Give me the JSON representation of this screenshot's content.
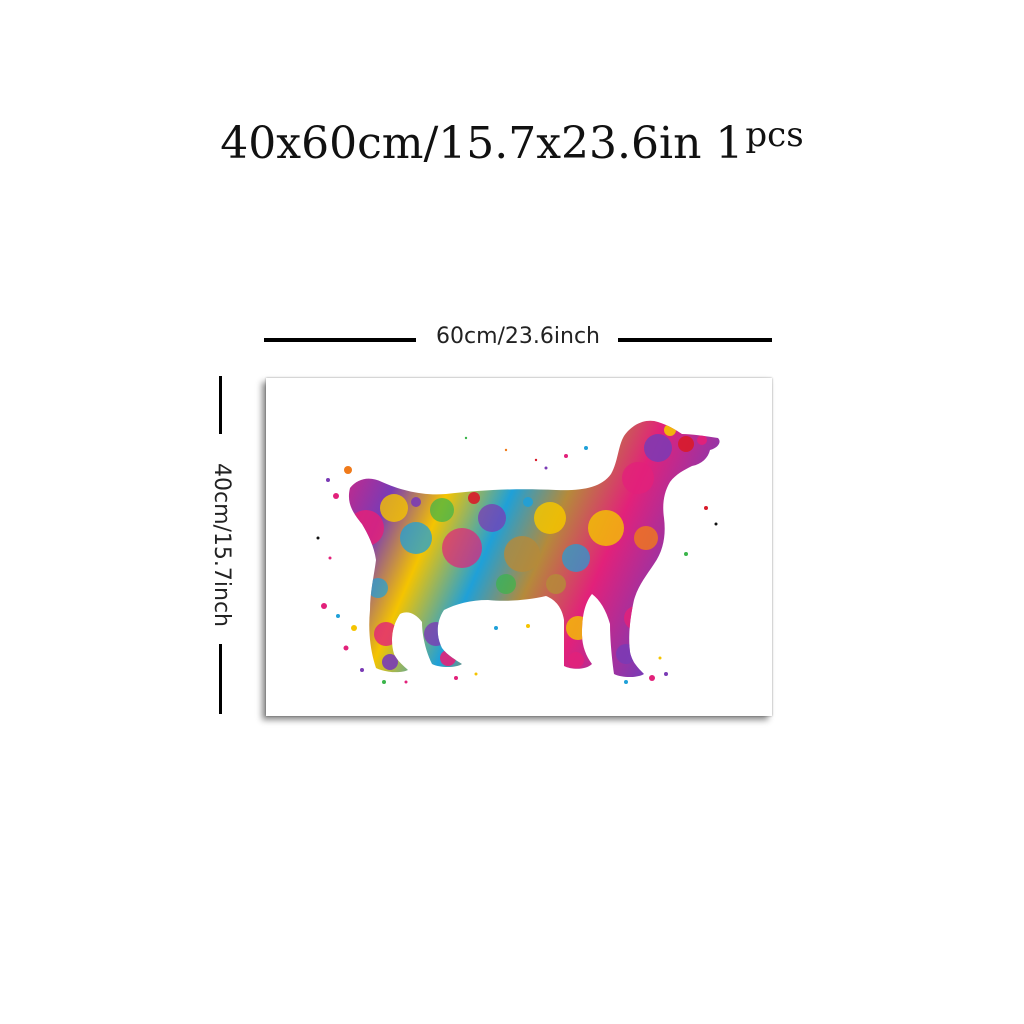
{
  "title": {
    "main": "40x60cm/15.7x23.6in 1",
    "suffix": "pcs"
  },
  "dimensions": {
    "width_label": "60cm/23.6inch",
    "height_label": "40cm/15.7inch"
  },
  "artwork": {
    "subject": "dog-silhouette",
    "palette": [
      "#e2217a",
      "#f5c400",
      "#1fa0d8",
      "#7a3bb5",
      "#f07a1a",
      "#3ab54a",
      "#d81b2a",
      "#b58a3a"
    ]
  }
}
